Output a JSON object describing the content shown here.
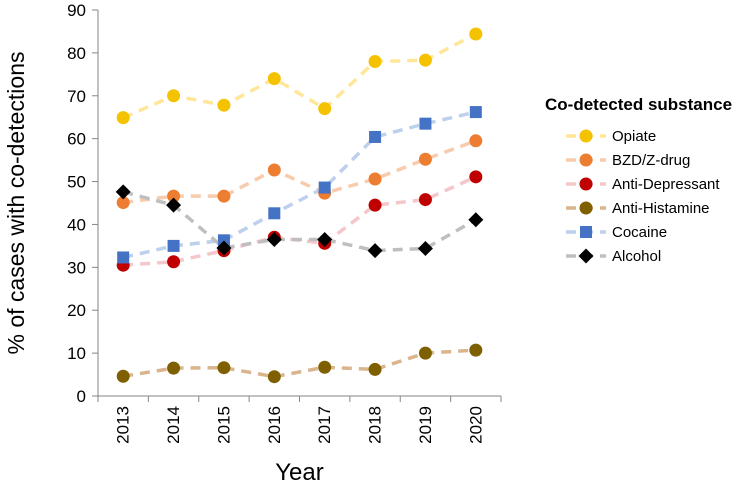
{
  "chart_data": {
    "type": "line",
    "title": "",
    "xlabel": "Year",
    "ylabel": "% of cases with co-detections",
    "x": [
      "2013",
      "2014",
      "2015",
      "2016",
      "2017",
      "2018",
      "2019",
      "2020"
    ],
    "ylim": [
      0,
      90
    ],
    "yticks": [
      0,
      10,
      20,
      30,
      40,
      50,
      60,
      70,
      80,
      90
    ],
    "grid": false,
    "legend_title": "Co-detected substance",
    "legend_position": "right",
    "series": [
      {
        "name": "Opiate",
        "marker": "circle",
        "color": "#F5C200",
        "line_color": "#FFE699",
        "values": [
          64.9,
          70.0,
          67.8,
          74.0,
          67.0,
          78.0,
          78.3,
          84.4
        ]
      },
      {
        "name": "BZD/Z-drug",
        "marker": "circle",
        "color": "#ED7D31",
        "line_color": "#F8CBAD",
        "values": [
          45.1,
          46.6,
          46.6,
          52.7,
          47.3,
          50.6,
          55.2,
          59.5
        ]
      },
      {
        "name": "Anti-Depressant",
        "marker": "circle",
        "color": "#C00000",
        "line_color": "#F4C7CA",
        "values": [
          30.5,
          31.3,
          33.9,
          37.0,
          35.6,
          44.5,
          45.8,
          51.1
        ]
      },
      {
        "name": "Anti-Histamine",
        "marker": "circle",
        "color": "#7F6000",
        "line_color": "#D9B48C",
        "values": [
          4.6,
          6.5,
          6.6,
          4.5,
          6.7,
          6.2,
          10.0,
          10.7
        ]
      },
      {
        "name": "Cocaine",
        "marker": "square",
        "color": "#4472C4",
        "line_color": "#BDD0EE",
        "values": [
          32.3,
          35.0,
          36.3,
          42.6,
          48.6,
          60.4,
          63.5,
          66.2
        ]
      },
      {
        "name": "Alcohol",
        "marker": "diamond",
        "color": "#000000",
        "line_color": "#BFBFBF",
        "values": [
          47.6,
          44.5,
          34.5,
          36.5,
          36.5,
          33.9,
          34.4,
          41.1
        ]
      }
    ]
  }
}
